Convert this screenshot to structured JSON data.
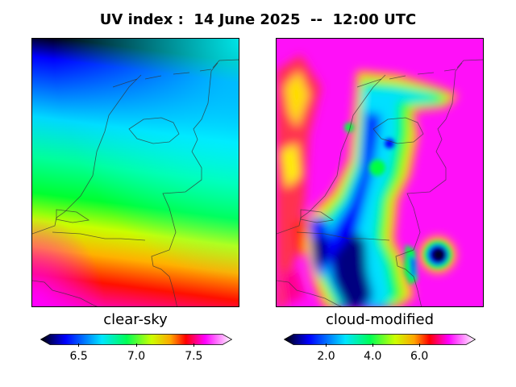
{
  "figure": {
    "title": "UV index :  14 June 2025  --  12:00 UTC"
  },
  "panels": [
    {
      "label": "clear-sky",
      "colorbar": {
        "ticks": [
          "6.5",
          "7.0",
          "7.5"
        ],
        "tick_values": [
          6.5,
          7.0,
          7.5
        ],
        "range": [
          6.25,
          7.75
        ],
        "extend": "both"
      }
    },
    {
      "label": "cloud-modified",
      "colorbar": {
        "ticks": [
          "2.0",
          "4.0",
          "6.0"
        ],
        "tick_values": [
          2.0,
          4.0,
          6.0
        ],
        "range": [
          0.6,
          8.0
        ],
        "extend": "both"
      }
    }
  ],
  "colormap": {
    "name": "gist_ncar-like",
    "stops": [
      "#000000",
      "#0000ff",
      "#00e5ff",
      "#00ff55",
      "#ccff00",
      "#ffa500",
      "#ff0000",
      "#ff00ff",
      "#ffffff"
    ]
  }
}
